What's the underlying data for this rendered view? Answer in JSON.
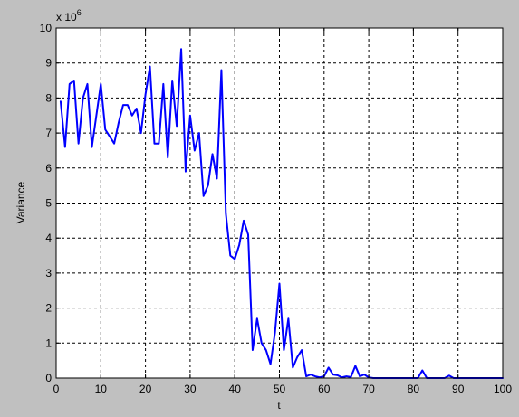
{
  "chart_data": {
    "type": "line",
    "title": "",
    "xlabel": "t",
    "ylabel": "Variance",
    "exponent_label": "x 10",
    "exponent_power": "6",
    "xlim": [
      0,
      100
    ],
    "ylim": [
      0,
      10
    ],
    "x_ticks": [
      "0",
      "10",
      "20",
      "30",
      "40",
      "50",
      "60",
      "70",
      "80",
      "90",
      "100"
    ],
    "y_ticks": [
      "0",
      "1",
      "2",
      "3",
      "4",
      "5",
      "6",
      "7",
      "8",
      "9",
      "10"
    ],
    "grid": true,
    "grid_style": "dashed",
    "y_multiplier": 1000000,
    "series": [
      {
        "color": "#0000ff",
        "x": [
          1,
          2,
          3,
          4,
          5,
          6,
          7,
          8,
          9,
          10,
          11,
          12,
          13,
          14,
          15,
          16,
          17,
          18,
          19,
          20,
          21,
          22,
          23,
          24,
          25,
          26,
          27,
          28,
          29,
          30,
          31,
          32,
          33,
          34,
          35,
          36,
          37,
          38,
          39,
          40,
          41,
          42,
          43,
          44,
          45,
          46,
          47,
          48,
          49,
          50,
          51,
          52,
          53,
          54,
          55,
          56,
          57,
          58,
          59,
          60,
          61,
          62,
          63,
          64,
          65,
          66,
          67,
          68,
          69,
          70,
          71,
          72,
          73,
          74,
          75,
          76,
          77,
          78,
          79,
          80,
          81,
          82,
          83,
          84,
          85,
          86,
          87,
          88,
          89,
          90,
          91,
          92,
          93,
          94,
          95,
          96,
          97,
          98,
          99,
          100
        ],
        "y": [
          7.9,
          6.6,
          8.4,
          8.5,
          6.7,
          8.0,
          8.4,
          6.6,
          7.5,
          8.4,
          7.1,
          6.9,
          6.7,
          7.3,
          7.8,
          7.8,
          7.5,
          7.7,
          7.0,
          8.1,
          8.9,
          6.7,
          6.7,
          8.4,
          6.3,
          8.5,
          7.2,
          9.4,
          5.9,
          7.5,
          6.5,
          7.0,
          5.2,
          5.5,
          6.4,
          5.7,
          8.8,
          4.7,
          3.5,
          3.4,
          3.8,
          4.5,
          4.1,
          0.8,
          1.7,
          1.0,
          0.8,
          0.4,
          1.3,
          2.7,
          0.8,
          1.7,
          0.3,
          0.6,
          0.8,
          0.05,
          0.1,
          0.05,
          0.02,
          0.05,
          0.3,
          0.1,
          0.08,
          0.02,
          0.05,
          0.03,
          0.35,
          0.05,
          0.1,
          0.02,
          0.0,
          0.0,
          0.0,
          0.0,
          0.0,
          0.0,
          0.0,
          0.0,
          0.0,
          0.0,
          0.0,
          0.22,
          0.0,
          0.0,
          0.0,
          0.0,
          0.0,
          0.07,
          0.0,
          0.0,
          0.0,
          0.0,
          0.0,
          0.0,
          0.0,
          0.0,
          0.0,
          0.0,
          0.0,
          0.0
        ]
      }
    ]
  }
}
